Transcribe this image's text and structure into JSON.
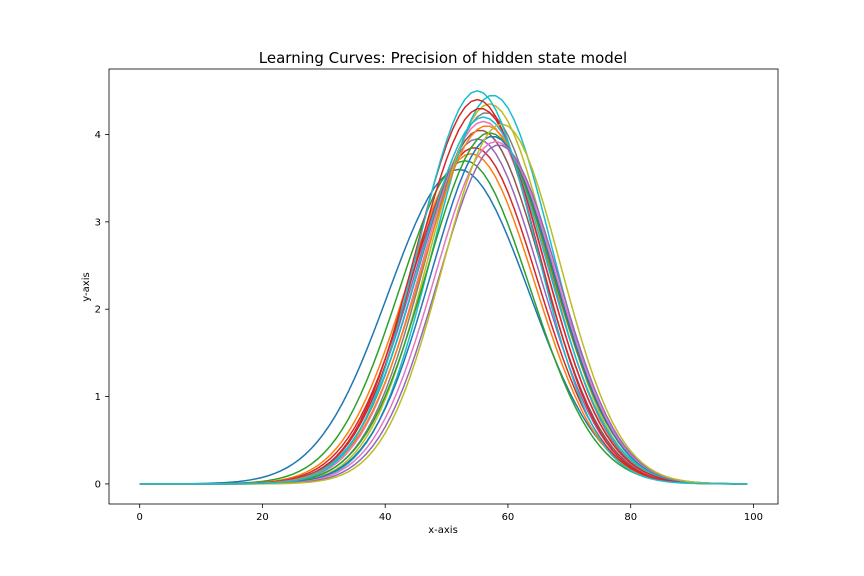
{
  "chart_data": {
    "type": "line",
    "title": "Learning Curves: Precision of hidden state model",
    "xlabel": "x-axis",
    "ylabel": "y-axis",
    "xlim": [
      -5,
      104
    ],
    "ylim": [
      -0.23,
      4.75
    ],
    "xticks": [
      0,
      20,
      40,
      60,
      80,
      100
    ],
    "yticks": [
      0,
      1,
      2,
      3,
      4
    ],
    "grid": false,
    "legend": "none",
    "x_range": [
      0,
      99
    ],
    "series_form": "gaussian peak curves sampled at x = 0..99",
    "series": [
      {
        "peak_x": 52.0,
        "peak_y": 3.6,
        "sigma": 11.5,
        "color": "#1f77b4"
      },
      {
        "peak_x": 53.0,
        "peak_y": 3.7,
        "sigma": 10.6,
        "color": "#2ca02c"
      },
      {
        "peak_x": 54.0,
        "peak_y": 3.78,
        "sigma": 10.4,
        "color": "#ff7f0e"
      },
      {
        "peak_x": 54.5,
        "peak_y": 3.85,
        "sigma": 10.3,
        "color": "#d62728"
      },
      {
        "peak_x": 55.0,
        "peak_y": 3.95,
        "sigma": 10.2,
        "color": "#9467bd"
      },
      {
        "peak_x": 55.5,
        "peak_y": 4.05,
        "sigma": 10.1,
        "color": "#8c564b"
      },
      {
        "peak_x": 56.0,
        "peak_y": 4.15,
        "sigma": 10.0,
        "color": "#e377c2"
      },
      {
        "peak_x": 56.5,
        "peak_y": 4.25,
        "sigma": 9.9,
        "color": "#7f7f7f"
      },
      {
        "peak_x": 57.0,
        "peak_y": 4.35,
        "sigma": 9.8,
        "color": "#bcbd22"
      },
      {
        "peak_x": 57.5,
        "peak_y": 4.45,
        "sigma": 9.7,
        "color": "#17becf"
      },
      {
        "peak_x": 55.0,
        "peak_y": 4.4,
        "sigma": 10.0,
        "color": "#d62728"
      },
      {
        "peak_x": 55.5,
        "peak_y": 4.3,
        "sigma": 10.2,
        "color": "#d62728"
      },
      {
        "peak_x": 56.0,
        "peak_y": 4.2,
        "sigma": 10.3,
        "color": "#17becf"
      },
      {
        "peak_x": 56.5,
        "peak_y": 4.1,
        "sigma": 10.4,
        "color": "#ff7f0e"
      },
      {
        "peak_x": 57.0,
        "peak_y": 4.02,
        "sigma": 10.2,
        "color": "#2ca02c"
      },
      {
        "peak_x": 57.5,
        "peak_y": 3.98,
        "sigma": 10.0,
        "color": "#1f77b4"
      },
      {
        "peak_x": 58.0,
        "peak_y": 3.92,
        "sigma": 9.9,
        "color": "#e377c2"
      },
      {
        "peak_x": 58.5,
        "peak_y": 3.88,
        "sigma": 9.8,
        "color": "#9467bd"
      },
      {
        "peak_x": 59.0,
        "peak_y": 4.12,
        "sigma": 9.6,
        "color": "#bcbd22"
      },
      {
        "peak_x": 55.0,
        "peak_y": 4.5,
        "sigma": 9.6,
        "color": "#17becf"
      }
    ]
  }
}
